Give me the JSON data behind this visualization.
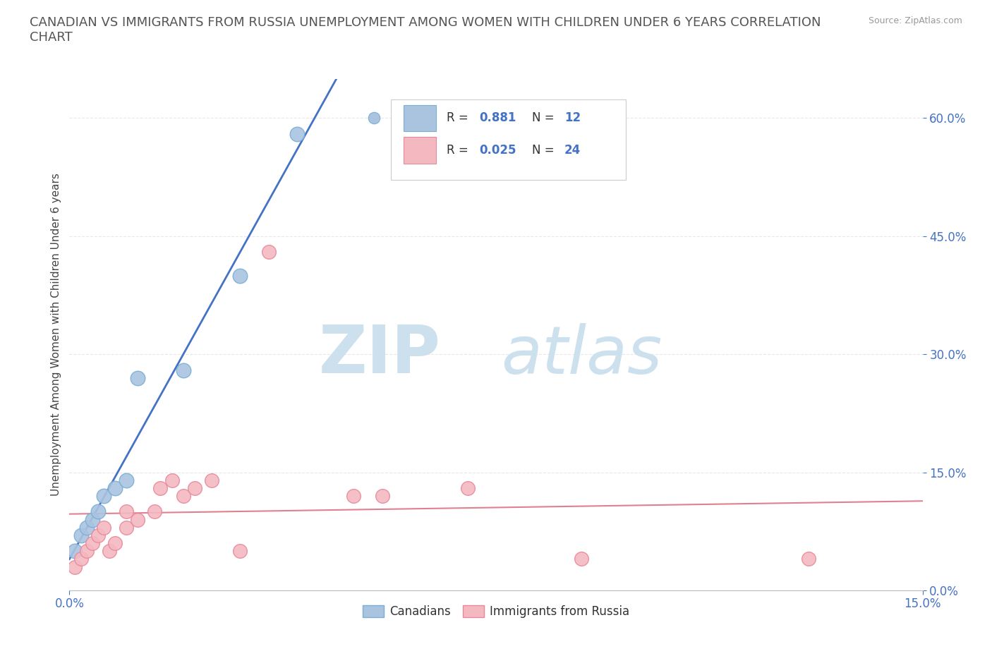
{
  "title": "CANADIAN VS IMMIGRANTS FROM RUSSIA UNEMPLOYMENT AMONG WOMEN WITH CHILDREN UNDER 6 YEARS CORRELATION\nCHART",
  "source": "Source: ZipAtlas.com",
  "ylabel": "Unemployment Among Women with Children Under 6 years",
  "xlim": [
    0.0,
    0.15
  ],
  "ylim": [
    0.0,
    0.65
  ],
  "xtick_vals": [
    0.0,
    0.15
  ],
  "xtick_labels": [
    "0.0%",
    "15.0%"
  ],
  "ytick_vals": [
    0.0,
    0.15,
    0.3,
    0.45,
    0.6
  ],
  "ytick_labels": [
    "0.0%",
    "15.0%",
    "30.0%",
    "45.0%",
    "60.0%"
  ],
  "canadians_x": [
    0.001,
    0.002,
    0.003,
    0.004,
    0.005,
    0.006,
    0.008,
    0.01,
    0.012,
    0.02,
    0.03,
    0.04
  ],
  "canadians_y": [
    0.05,
    0.07,
    0.08,
    0.09,
    0.1,
    0.12,
    0.13,
    0.14,
    0.27,
    0.28,
    0.4,
    0.58
  ],
  "canadians_color": "#aac4e0",
  "canadians_edge": "#7aafd4",
  "canadians_R": 0.881,
  "canadians_N": 12,
  "russia_x": [
    0.001,
    0.002,
    0.003,
    0.004,
    0.005,
    0.006,
    0.007,
    0.008,
    0.01,
    0.01,
    0.012,
    0.015,
    0.016,
    0.018,
    0.02,
    0.022,
    0.025,
    0.03,
    0.035,
    0.05,
    0.055,
    0.07,
    0.09,
    0.13
  ],
  "russia_y": [
    0.03,
    0.04,
    0.05,
    0.06,
    0.07,
    0.08,
    0.05,
    0.06,
    0.08,
    0.1,
    0.09,
    0.1,
    0.13,
    0.14,
    0.12,
    0.13,
    0.14,
    0.05,
    0.43,
    0.12,
    0.12,
    0.13,
    0.04,
    0.04
  ],
  "russia_color": "#f4b8c1",
  "russia_edge": "#e8899a",
  "russia_R": 0.025,
  "russia_N": 24,
  "line_canadian_color": "#4472c4",
  "line_russia_color": "#e08090",
  "watermark_zip_color": "#cce0ee",
  "watermark_atlas_color": "#cce0ee",
  "background_color": "#ffffff",
  "grid_color": "#e8e8e8",
  "grid_style": "--"
}
